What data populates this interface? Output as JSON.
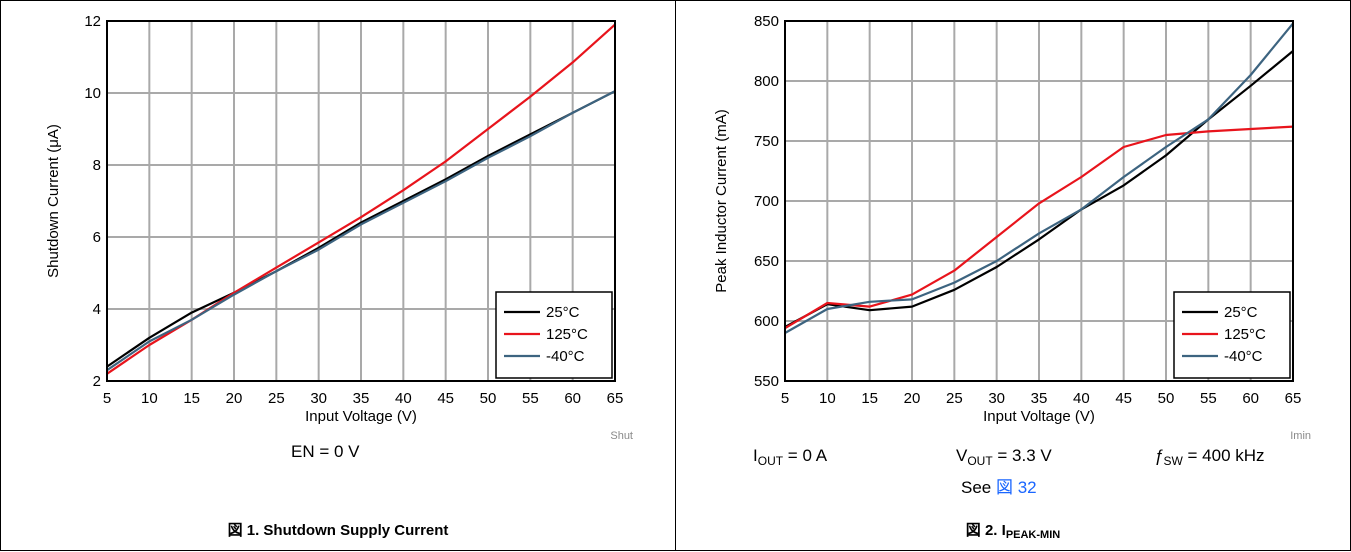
{
  "colors": {
    "black": "#000000",
    "red": "#e8141c",
    "steel": "#3d6480",
    "grid": "#a9a9a9"
  },
  "figure1": {
    "file_id": "Shut",
    "condition": "EN = 0 V",
    "caption_label": "図 1.",
    "caption_text": "Shutdown Supply Current"
  },
  "figure2": {
    "file_id": "Imin",
    "cond_iout_sym": "I",
    "cond_iout_sub": "OUT",
    "cond_iout_val": " = 0 A",
    "cond_vout_sym": "V",
    "cond_vout_sub": "OUT",
    "cond_vout_val": " = 3.3 V",
    "cond_fsw_sym": "ƒ",
    "cond_fsw_sub": "SW",
    "cond_fsw_val": " = 400 kHz",
    "see_prefix": "See ",
    "see_link": "図 32",
    "caption_label": "図 2.",
    "caption_sym": "I",
    "caption_sub": "PEAK-MIN"
  },
  "chart_data": [
    {
      "type": "line",
      "xlabel": "Input Voltage (V)",
      "ylabel": "Shutdown Current (μA)",
      "xlim": [
        5,
        65
      ],
      "ylim": [
        2,
        12
      ],
      "xticks": [
        5,
        10,
        15,
        20,
        25,
        30,
        35,
        40,
        45,
        50,
        55,
        60,
        65
      ],
      "yticks": [
        2,
        4,
        6,
        8,
        10,
        12
      ],
      "grid": true,
      "legend_position": "bottom-right",
      "x": [
        5,
        10,
        15,
        20,
        25,
        30,
        35,
        40,
        45,
        50,
        55,
        60,
        65
      ],
      "series": [
        {
          "name": "25°C",
          "color": "#000000",
          "values": [
            2.4,
            3.2,
            3.9,
            4.45,
            5.05,
            5.7,
            6.4,
            7.0,
            7.6,
            8.25,
            8.85,
            9.45,
            10.05
          ]
        },
        {
          "name": "125°C",
          "color": "#e8141c",
          "values": [
            2.2,
            3.0,
            3.7,
            4.45,
            5.15,
            5.85,
            6.55,
            7.3,
            8.1,
            9.0,
            9.9,
            10.85,
            11.9
          ]
        },
        {
          "name": "-40°C",
          "color": "#3d6480",
          "values": [
            2.3,
            3.1,
            3.7,
            4.4,
            5.05,
            5.65,
            6.35,
            6.95,
            7.55,
            8.2,
            8.8,
            9.45,
            10.05
          ]
        }
      ]
    },
    {
      "type": "line",
      "xlabel": "Input Voltage (V)",
      "ylabel": "Peak Inductor Current (mA)",
      "xlim": [
        5,
        65
      ],
      "ylim": [
        550,
        850
      ],
      "xticks": [
        5,
        10,
        15,
        20,
        25,
        30,
        35,
        40,
        45,
        50,
        55,
        60,
        65
      ],
      "yticks": [
        550,
        600,
        650,
        700,
        750,
        800,
        850
      ],
      "grid": true,
      "legend_position": "bottom-right",
      "x": [
        5,
        10,
        15,
        20,
        25,
        30,
        35,
        40,
        45,
        50,
        55,
        60,
        65
      ],
      "series": [
        {
          "name": "25°C",
          "color": "#000000",
          "values": [
            595,
            614,
            609,
            612,
            626,
            645,
            668,
            693,
            713,
            738,
            768,
            796,
            825
          ]
        },
        {
          "name": "125°C",
          "color": "#e8141c",
          "values": [
            594,
            615,
            612,
            622,
            642,
            670,
            698,
            720,
            745,
            755,
            758,
            760,
            762
          ]
        },
        {
          "name": "-40°C",
          "color": "#3d6480",
          "values": [
            590,
            610,
            616,
            618,
            632,
            650,
            673,
            693,
            720,
            745,
            768,
            805,
            848
          ]
        }
      ]
    }
  ]
}
